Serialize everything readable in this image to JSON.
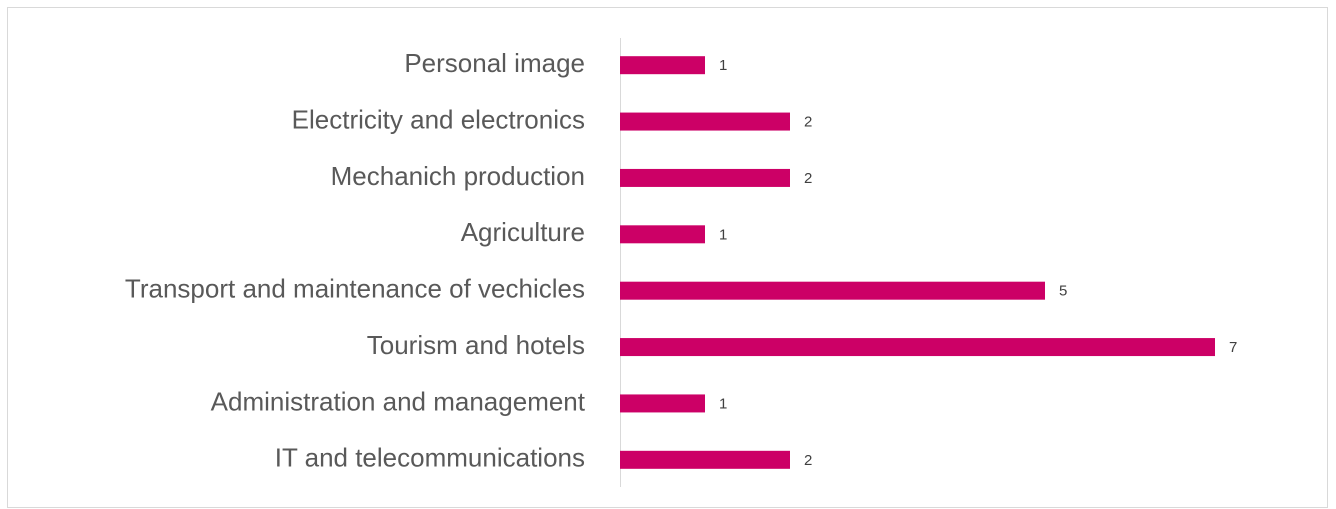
{
  "chart_data": {
    "type": "bar",
    "orientation": "horizontal",
    "categories": [
      "Personal image",
      "Electricity and electronics",
      "Mechanich production",
      "Agriculture",
      "Transport and maintenance of vechicles",
      "Tourism and hotels",
      "Administration and management",
      "IT and telecommunications"
    ],
    "values": [
      1,
      2,
      2,
      1,
      5,
      7,
      1,
      2
    ],
    "color": "#cc0066"
  }
}
